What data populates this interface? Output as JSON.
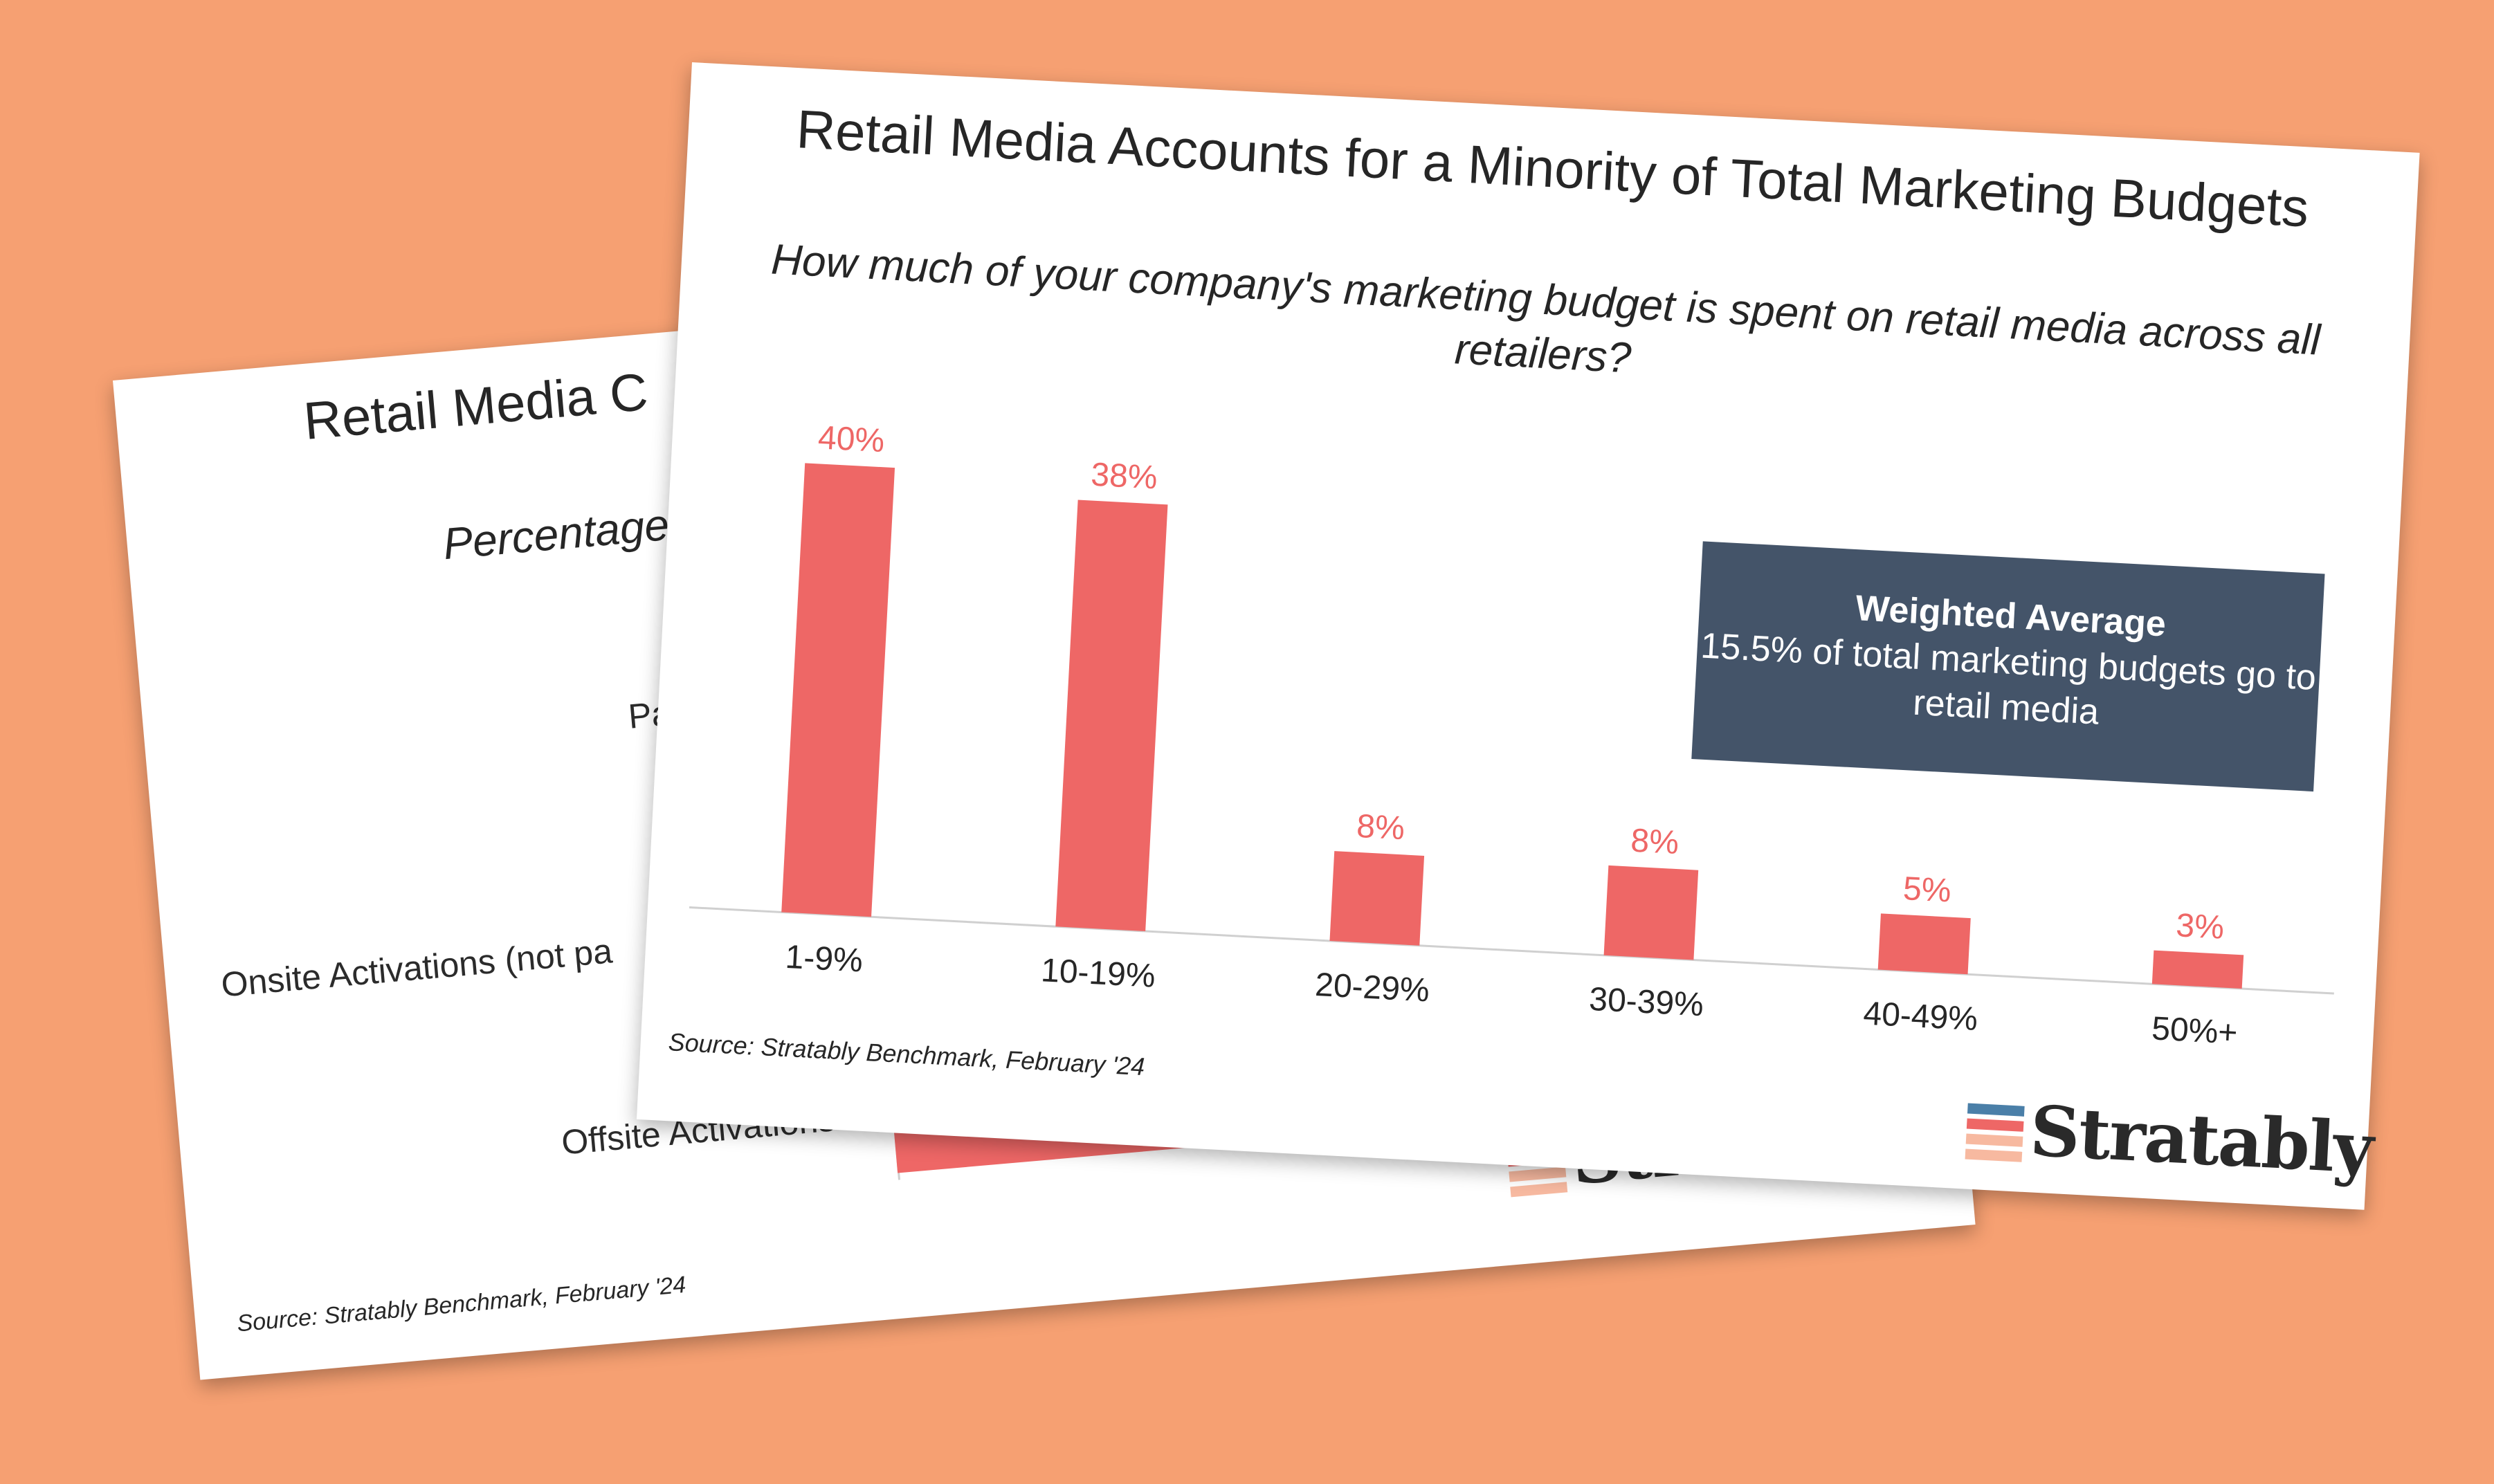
{
  "back_slide": {
    "title": "Retail Media C",
    "subtitle": "Percentage",
    "categories": [
      "Paid",
      "Onsite Activations (not pa",
      "Offsite Activations"
    ],
    "source": "Source: Stratably Benchmark, February '24",
    "logo": "Stratably"
  },
  "front_slide": {
    "title": "Retail Media Accounts for a Minority of Total Marketing Budgets",
    "subtitle": "How much of your company's marketing budget is spent on retail media across all retailers?",
    "callout": {
      "heading": "Weighted Average",
      "body": "15.5% of total marketing budgets go to retail media"
    },
    "source": "Source: Stratably Benchmark, February '24",
    "logo": "Stratably"
  },
  "chart_data": {
    "type": "bar",
    "categories": [
      "1-9%",
      "10-19%",
      "20-29%",
      "30-39%",
      "40-49%",
      "50%+"
    ],
    "values": [
      40,
      38,
      8,
      8,
      5,
      3
    ],
    "data_labels": [
      "40%",
      "38%",
      "8%",
      "8%",
      "5%",
      "3%"
    ],
    "title": "Retail Media Accounts for a Minority of Total Marketing Budgets",
    "subtitle": "How much of your company's marketing budget is spent on retail media across all retailers?",
    "xlabel": "",
    "ylabel": "",
    "ylim": [
      0,
      40
    ],
    "grid": false,
    "legend": "none",
    "bar_color": "#EE6766",
    "label_color": "#EE6766"
  },
  "colors": {
    "background": "#F6A072",
    "callout_bg": "#445469",
    "logo_blue": "#4A7FA8",
    "logo_red": "#EE6766",
    "logo_peach": "#F7B9A0"
  }
}
